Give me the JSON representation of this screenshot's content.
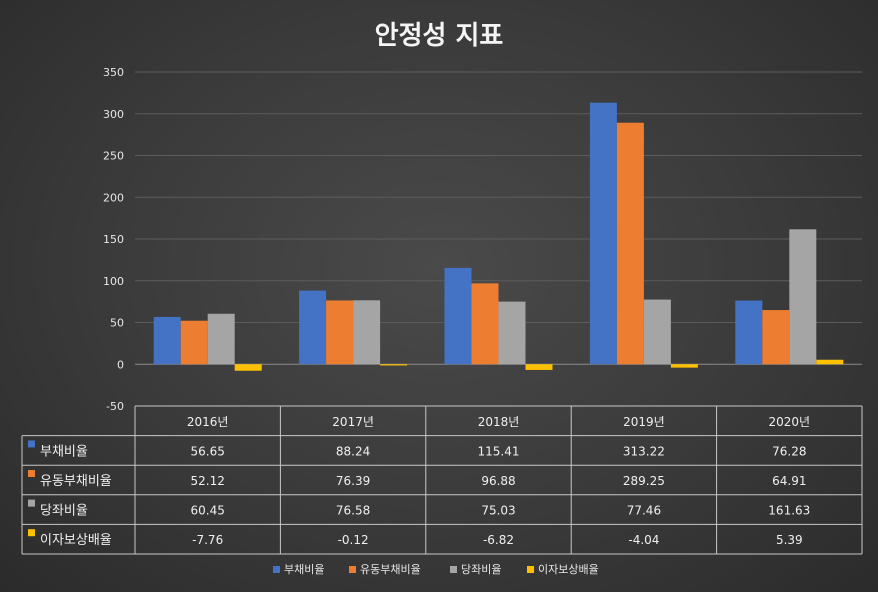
{
  "chart_data": {
    "type": "bar",
    "title": "안정성 지표",
    "categories": [
      "2016년",
      "2017년",
      "2018년",
      "2019년",
      "2020년"
    ],
    "series": [
      {
        "name": "부채비율",
        "color": "#4472C4",
        "values": [
          56.65,
          88.24,
          115.41,
          313.22,
          76.28
        ],
        "labels": [
          "56.65",
          "88.24",
          "115.41",
          "313.22",
          "76.28"
        ]
      },
      {
        "name": "유동부채비율",
        "color": "#ED7D31",
        "values": [
          52.12,
          76.39,
          96.88,
          289.25,
          64.91
        ],
        "labels": [
          "52.12",
          "76.39",
          "96.88",
          "289.25",
          "64.91"
        ]
      },
      {
        "name": "당좌비율",
        "color": "#A5A5A5",
        "values": [
          60.45,
          76.58,
          75.03,
          77.46,
          161.63
        ],
        "labels": [
          "60.45",
          "76.58",
          "75.03",
          "77.46",
          "161.63"
        ]
      },
      {
        "name": "이자보상배율",
        "color": "#FFC000",
        "values": [
          -7.76,
          -0.12,
          -6.82,
          -4.04,
          5.39
        ],
        "labels": [
          "-7.76",
          "-0.12",
          "-6.82",
          "-4.04",
          "5.39"
        ]
      }
    ],
    "ylim": [
      -50,
      350
    ],
    "yticks": [
      350,
      300,
      250,
      200,
      150,
      100,
      50,
      0,
      -50
    ],
    "grid": true,
    "legend": "bottom",
    "data_table": true
  }
}
